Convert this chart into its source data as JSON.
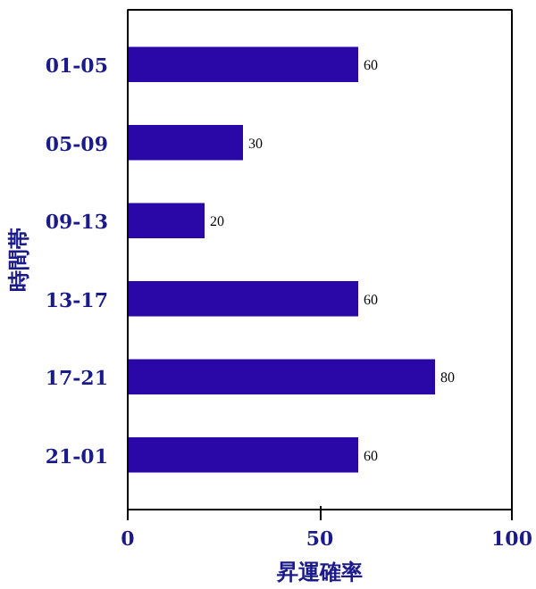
{
  "chart_data": {
    "type": "bar",
    "orientation": "horizontal",
    "xlabel": "昇運確率",
    "ylabel": "時間帯",
    "categories": [
      "01-05",
      "05-09",
      "09-13",
      "13-17",
      "17-21",
      "21-01"
    ],
    "values": [
      60,
      30,
      20,
      60,
      80,
      60
    ],
    "color": "#2a08a8",
    "xlim": [
      0,
      100
    ],
    "xticks": [
      0,
      50,
      100
    ],
    "data_labels": true,
    "grid": false
  }
}
